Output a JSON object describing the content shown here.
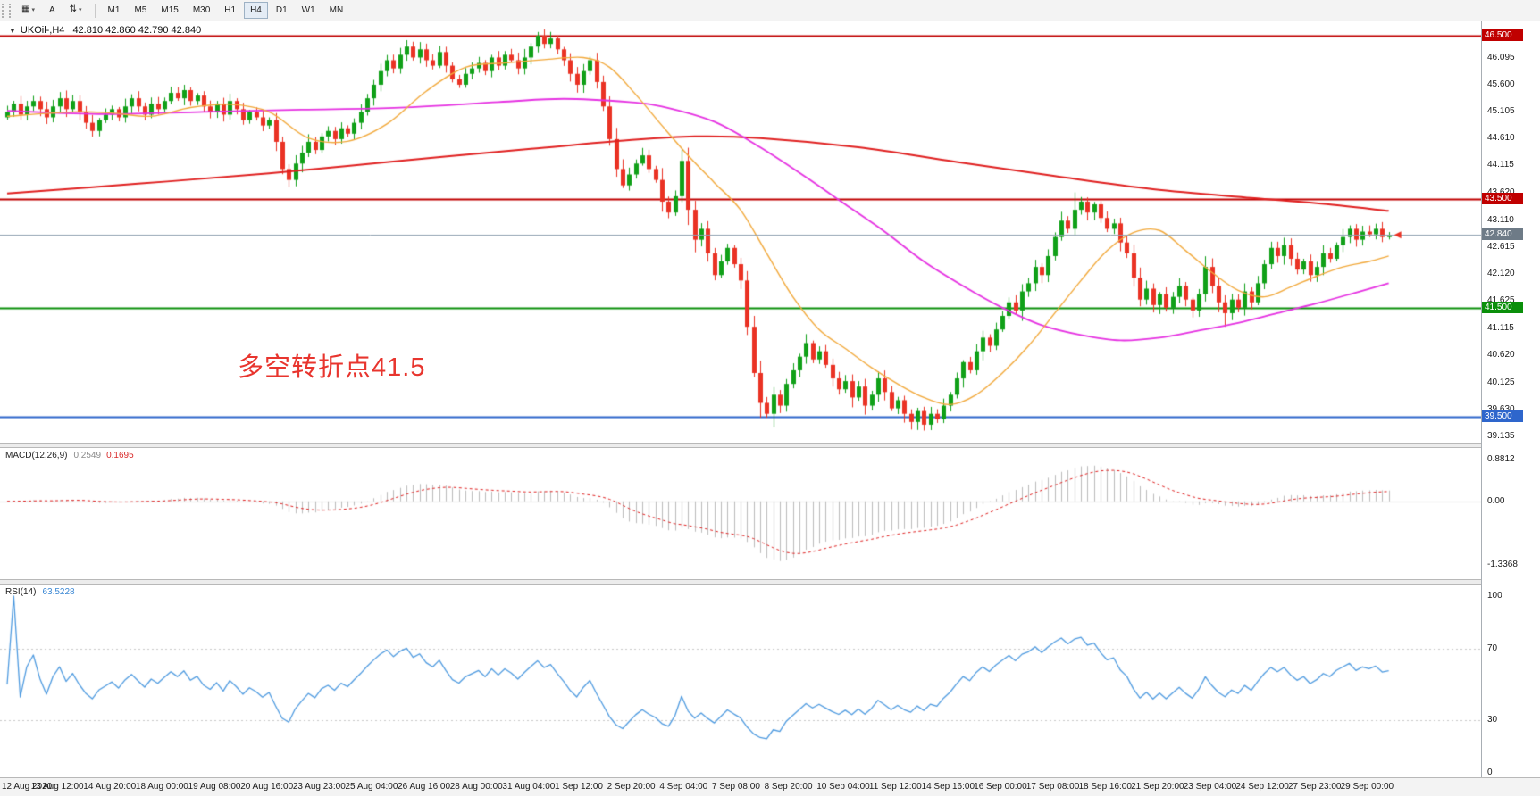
{
  "toolbar": {
    "buttons": [
      {
        "glyph": "▦",
        "caret": "▾"
      },
      {
        "glyph": "A",
        "caret": ""
      },
      {
        "glyph": "⇅",
        "caret": "▾"
      }
    ],
    "timeframes": [
      "M1",
      "M5",
      "M15",
      "M30",
      "H1",
      "H4",
      "D1",
      "W1",
      "MN"
    ],
    "active_timeframe": "H4"
  },
  "chart": {
    "collapse_icon": "▼",
    "title": "UKOil-,H4",
    "ohlc_text": "42.810 42.860 42.790 42.840",
    "annotation_text": "多空转折点41.5",
    "price_badges": [
      {
        "label": "46.500",
        "price": 46.5,
        "color": "#c00000"
      },
      {
        "label": "43.500",
        "price": 43.5,
        "color": "#c00000"
      },
      {
        "label": "42.840",
        "price": 42.84,
        "color": "#6e7b87"
      },
      {
        "label": "41.500",
        "price": 41.5,
        "color": "#0a8f0a"
      },
      {
        "label": "39.500",
        "price": 39.5,
        "color": "#2e66cc"
      }
    ],
    "y_ticks": [
      46.095,
      45.6,
      45.105,
      44.61,
      44.115,
      43.62,
      43.11,
      42.615,
      42.12,
      41.625,
      41.115,
      40.62,
      40.125,
      39.63,
      39.135
    ],
    "x_labels": [
      "12 Aug 2020",
      "13 Aug 12:00",
      "14 Aug 20:00",
      "18 Aug 00:00",
      "19 Aug 08:00",
      "20 Aug 16:00",
      "23 Aug 23:00",
      "25 Aug 04:00",
      "26 Aug 16:00",
      "28 Aug 00:00",
      "31 Aug 04:00",
      "1 Sep 12:00",
      "2 Sep 20:00",
      "4 Sep 04:00",
      "7 Sep 08:00",
      "8 Sep 20:00",
      "10 Sep 04:00",
      "11 Sep 12:00",
      "14 Sep 16:00",
      "16 Sep 00:00",
      "17 Sep 08:00",
      "18 Sep 16:00",
      "21 Sep 20:00",
      "23 Sep 04:00",
      "24 Sep 12:00",
      "27 Sep 23:00",
      "29 Sep 00:00"
    ]
  },
  "macd_panel": {
    "label": "MACD(12,26,9)",
    "value_main": "0.2549",
    "value_signal": "0.1695",
    "scale_labels": [
      "0.8812",
      "0.00",
      "-1.3368"
    ],
    "scale_values": [
      0.8812,
      0,
      -1.3368
    ]
  },
  "rsi_panel": {
    "label": "RSI(14)",
    "value": "63.5228",
    "scale_labels": [
      "100",
      "70",
      "30",
      "0"
    ],
    "scale_values": [
      100,
      70,
      30,
      0
    ]
  },
  "theme": {
    "up": "#10a018",
    "down": "#ea3224",
    "ma_fast": "#f2a93b",
    "ma_mid": "#e632e2",
    "ma_slow": "#e02020",
    "macd_hist": "#bcbcbc",
    "macd_signal": "#e02020",
    "rsi_line": "#4f9be0",
    "bid_line": "#8ea0b0",
    "annotation": "#e8352e"
  },
  "chart_data": {
    "type": "candlestick",
    "symbol": "UKOil-",
    "period": "H4",
    "first_open": 45.0,
    "ylim": [
      39.02,
      46.78
    ],
    "bid": 42.84,
    "hlines": [
      {
        "price": 46.5,
        "color": "#c00000",
        "width": 2
      },
      {
        "price": 43.5,
        "color": "#c00000",
        "width": 2
      },
      {
        "price": 41.5,
        "color": "#0a8f0a",
        "width": 2
      },
      {
        "price": 39.5,
        "color": "#2e66cc",
        "width": 2
      }
    ],
    "closes": [
      45.1,
      45.25,
      45.05,
      45.2,
      45.3,
      45.15,
      45.0,
      45.2,
      45.35,
      45.15,
      45.3,
      45.1,
      44.9,
      44.75,
      44.95,
      45.05,
      45.15,
      45.0,
      45.2,
      45.35,
      45.2,
      45.05,
      45.25,
      45.15,
      45.3,
      45.45,
      45.35,
      45.5,
      45.3,
      45.4,
      45.2,
      45.1,
      45.25,
      45.05,
      45.3,
      45.15,
      44.95,
      45.1,
      45.0,
      44.85,
      44.95,
      44.55,
      44.05,
      43.85,
      44.15,
      44.35,
      44.55,
      44.4,
      44.65,
      44.75,
      44.6,
      44.8,
      44.7,
      44.9,
      45.1,
      45.35,
      45.6,
      45.85,
      46.05,
      45.9,
      46.15,
      46.3,
      46.1,
      46.25,
      46.05,
      45.95,
      46.2,
      45.95,
      45.7,
      45.6,
      45.8,
      45.9,
      46.0,
      45.85,
      46.1,
      45.95,
      46.15,
      46.05,
      45.9,
      46.1,
      46.3,
      46.5,
      46.35,
      46.45,
      46.25,
      46.05,
      45.8,
      45.6,
      45.85,
      46.05,
      45.65,
      45.2,
      44.6,
      44.05,
      43.75,
      43.95,
      44.15,
      44.3,
      44.05,
      43.85,
      43.45,
      43.25,
      43.55,
      44.2,
      43.3,
      42.75,
      42.95,
      42.5,
      42.1,
      42.35,
      42.6,
      42.3,
      42.0,
      41.15,
      40.3,
      39.75,
      39.55,
      39.9,
      39.7,
      40.1,
      40.35,
      40.6,
      40.85,
      40.55,
      40.7,
      40.45,
      40.2,
      40.0,
      40.15,
      39.85,
      40.05,
      39.7,
      39.9,
      40.2,
      39.95,
      39.65,
      39.8,
      39.55,
      39.4,
      39.6,
      39.35,
      39.55,
      39.45,
      39.7,
      39.9,
      40.2,
      40.5,
      40.35,
      40.7,
      40.95,
      40.8,
      41.1,
      41.35,
      41.6,
      41.45,
      41.8,
      41.95,
      42.25,
      42.1,
      42.45,
      42.8,
      43.1,
      42.95,
      43.3,
      43.45,
      43.25,
      43.4,
      43.15,
      42.95,
      43.05,
      42.7,
      42.5,
      42.05,
      41.65,
      41.85,
      41.55,
      41.75,
      41.5,
      41.7,
      41.9,
      41.65,
      41.45,
      41.75,
      42.25,
      41.9,
      41.6,
      41.4,
      41.65,
      41.5,
      41.8,
      41.6,
      41.95,
      42.3,
      42.6,
      42.45,
      42.65,
      42.4,
      42.2,
      42.35,
      42.1,
      42.25,
      42.5,
      42.4,
      42.65,
      42.8,
      42.95,
      42.75,
      42.9,
      42.85,
      42.95,
      42.8,
      42.84
    ],
    "wick_overrides": {
      "43": {
        "l": 43.72
      },
      "81": {
        "h": 46.57
      },
      "105": {
        "l": 42.52
      },
      "115": {
        "l": 39.48
      },
      "117": {
        "l": 39.3
      },
      "138": {
        "l": 39.26
      },
      "141": {
        "l": 39.25
      },
      "163": {
        "h": 43.62
      },
      "186": {
        "l": 41.15
      }
    },
    "ma_slow_anchors": [
      [
        0,
        43.6
      ],
      [
        20,
        43.78
      ],
      [
        40,
        43.97
      ],
      [
        60,
        44.2
      ],
      [
        80,
        44.42
      ],
      [
        95,
        44.58
      ],
      [
        105,
        44.65
      ],
      [
        115,
        44.62
      ],
      [
        130,
        44.45
      ],
      [
        145,
        44.18
      ],
      [
        160,
        43.92
      ],
      [
        175,
        43.68
      ],
      [
        190,
        43.52
      ],
      [
        200,
        43.42
      ],
      [
        211,
        43.28
      ]
    ],
    "ma_mid_anchors": [
      [
        0,
        45.12
      ],
      [
        15,
        45.06
      ],
      [
        30,
        45.1
      ],
      [
        45,
        45.14
      ],
      [
        60,
        45.18
      ],
      [
        75,
        45.28
      ],
      [
        85,
        45.34
      ],
      [
        95,
        45.28
      ],
      [
        100,
        45.2
      ],
      [
        108,
        44.92
      ],
      [
        115,
        44.45
      ],
      [
        122,
        43.9
      ],
      [
        128,
        43.4
      ],
      [
        134,
        42.9
      ],
      [
        140,
        42.35
      ],
      [
        146,
        41.9
      ],
      [
        152,
        41.5
      ],
      [
        158,
        41.18
      ],
      [
        164,
        41.0
      ],
      [
        170,
        40.9
      ],
      [
        176,
        40.95
      ],
      [
        182,
        41.08
      ],
      [
        188,
        41.22
      ],
      [
        194,
        41.4
      ],
      [
        200,
        41.58
      ],
      [
        206,
        41.78
      ],
      [
        211,
        41.95
      ]
    ],
    "ma_fast_anchors": [
      [
        0,
        45.02
      ],
      [
        10,
        45.1
      ],
      [
        16,
        45.08
      ],
      [
        22,
        45.02
      ],
      [
        28,
        45.18
      ],
      [
        34,
        45.24
      ],
      [
        40,
        45.1
      ],
      [
        46,
        44.62
      ],
      [
        52,
        44.56
      ],
      [
        58,
        44.88
      ],
      [
        64,
        45.48
      ],
      [
        70,
        45.92
      ],
      [
        76,
        46.0
      ],
      [
        82,
        46.06
      ],
      [
        88,
        46.1
      ],
      [
        92,
        45.92
      ],
      [
        96,
        45.42
      ],
      [
        100,
        44.85
      ],
      [
        104,
        44.3
      ],
      [
        108,
        43.8
      ],
      [
        112,
        43.3
      ],
      [
        116,
        42.5
      ],
      [
        120,
        41.7
      ],
      [
        124,
        41.1
      ],
      [
        128,
        40.75
      ],
      [
        132,
        40.4
      ],
      [
        136,
        40.1
      ],
      [
        140,
        39.85
      ],
      [
        144,
        39.72
      ],
      [
        148,
        39.9
      ],
      [
        152,
        40.3
      ],
      [
        156,
        40.8
      ],
      [
        160,
        41.4
      ],
      [
        164,
        42.0
      ],
      [
        168,
        42.55
      ],
      [
        172,
        42.88
      ],
      [
        176,
        42.92
      ],
      [
        180,
        42.55
      ],
      [
        184,
        42.15
      ],
      [
        188,
        41.82
      ],
      [
        192,
        41.7
      ],
      [
        196,
        41.88
      ],
      [
        200,
        42.08
      ],
      [
        204,
        42.25
      ],
      [
        208,
        42.35
      ],
      [
        211,
        42.45
      ]
    ],
    "macd_params": [
      12,
      26,
      9
    ],
    "rsi_params": 14
  }
}
